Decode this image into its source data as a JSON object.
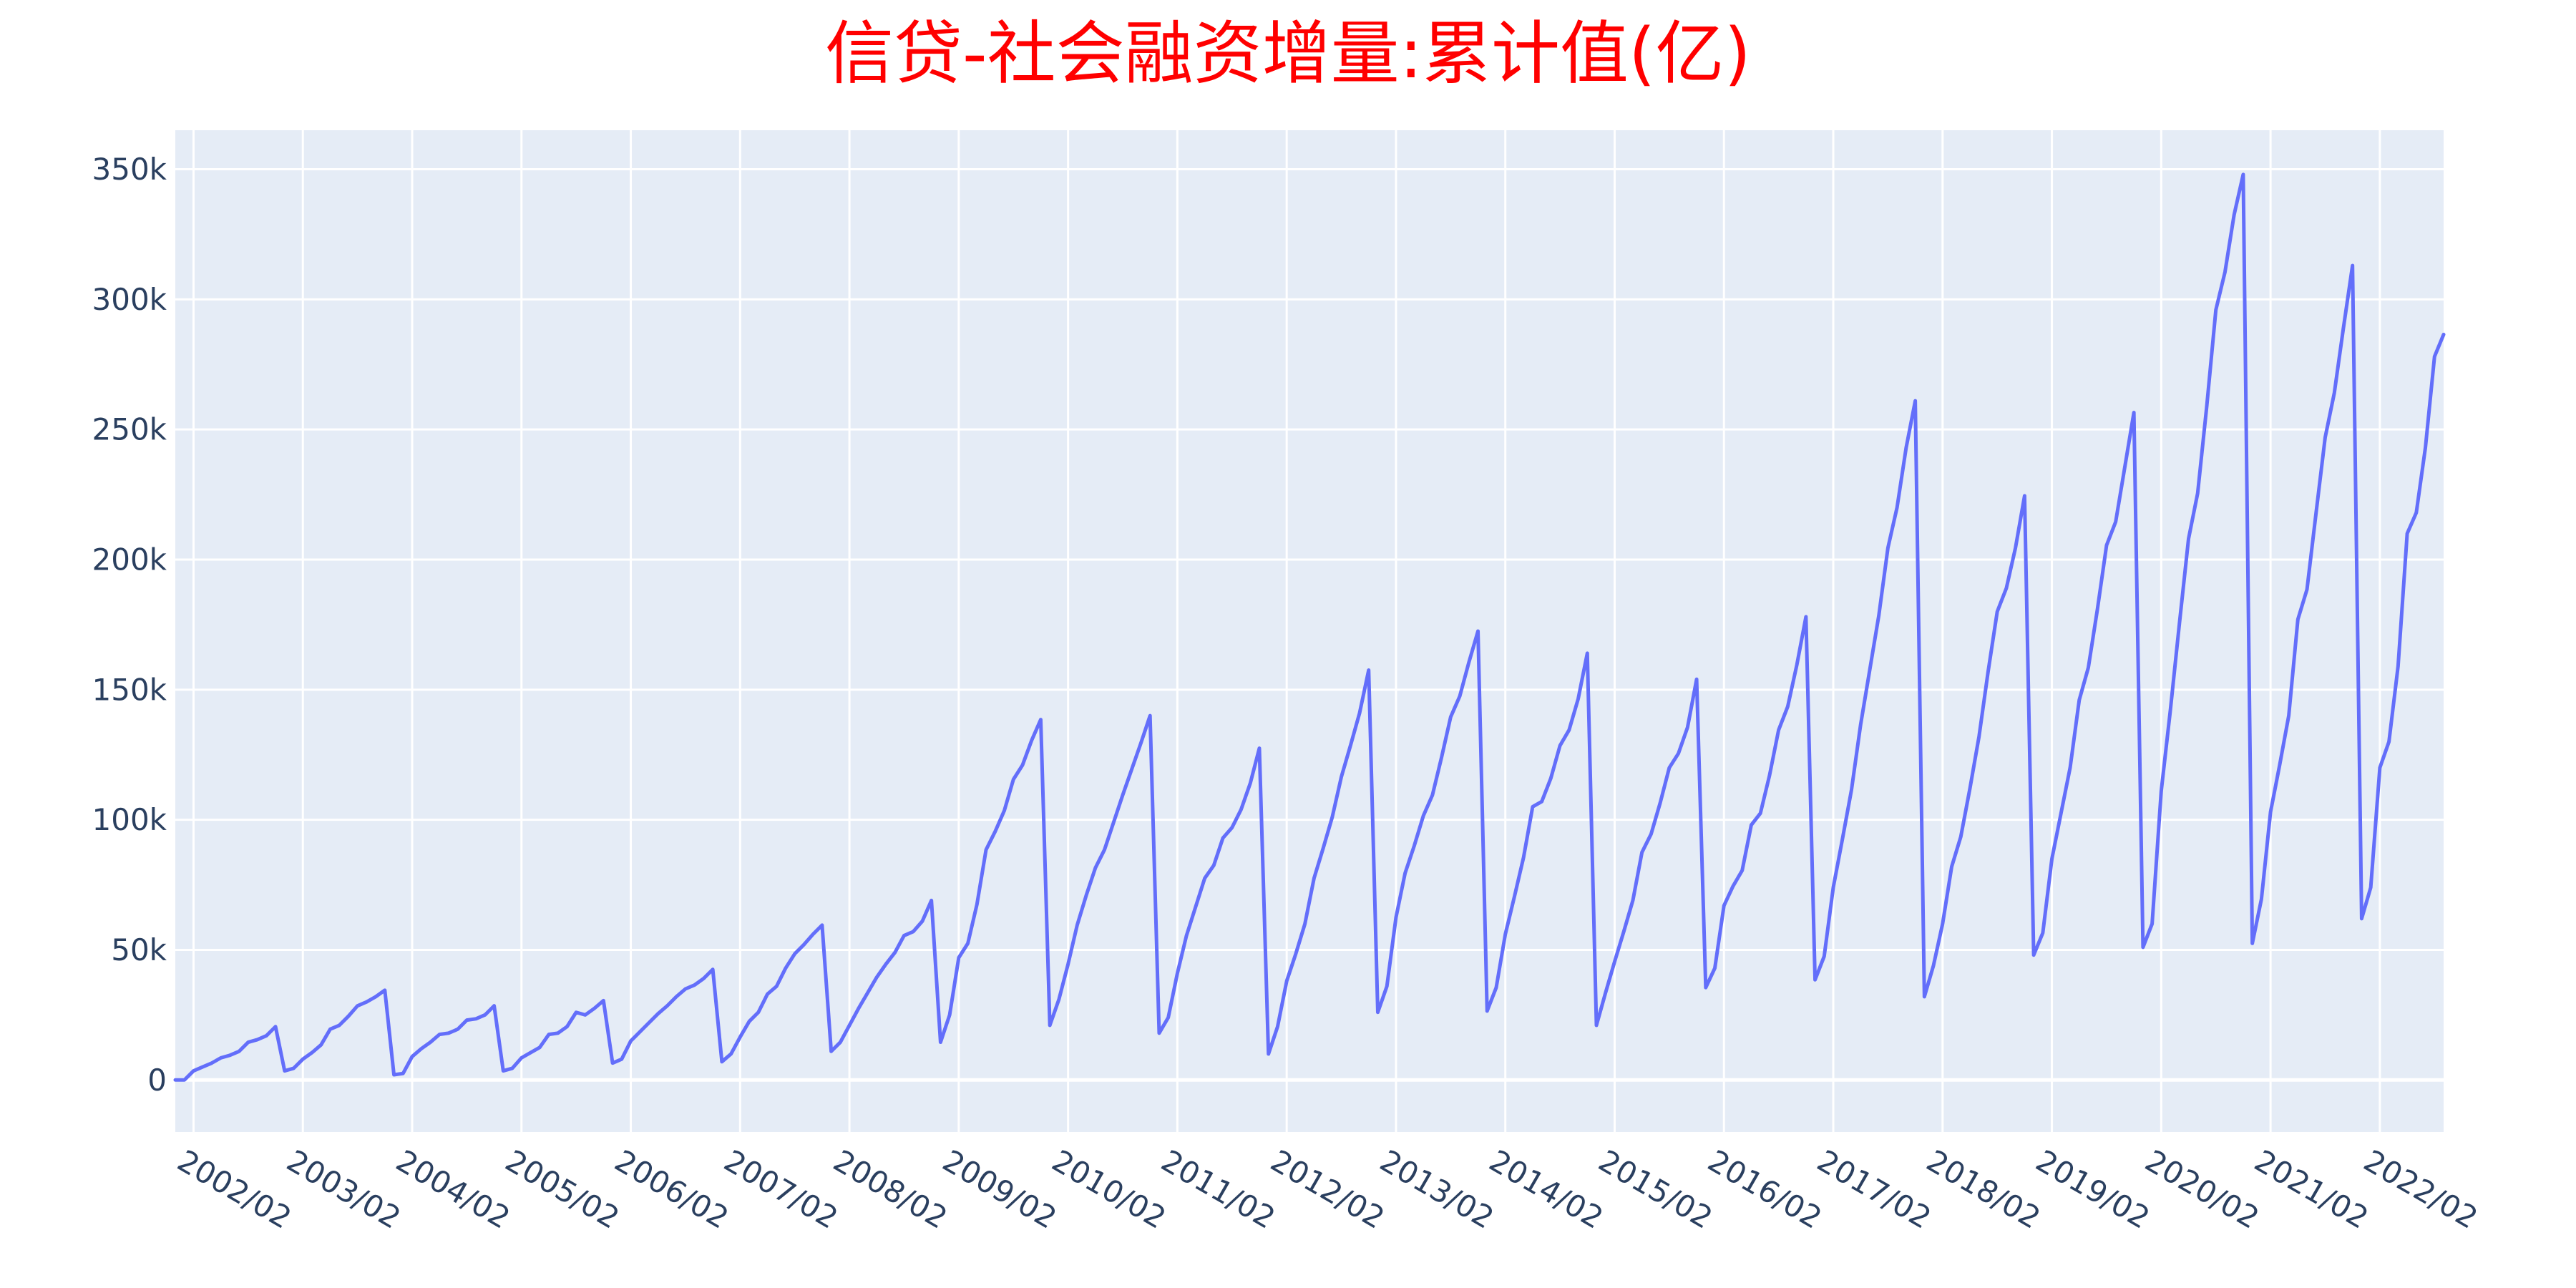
{
  "colors": {
    "title": "#ff0000",
    "plot_bg": "#e5ecf6",
    "grid": "#ffffff",
    "line": "#636efa",
    "tick_text": "#2a3f5f"
  },
  "chart_data": {
    "type": "line",
    "title": "信贷-社会融资增量:累计值(亿)",
    "xlabel": "",
    "ylabel": "",
    "x_start": "2001-12",
    "x_range": [
      "2001-12",
      "2022-06"
    ],
    "ylim": [
      -20000,
      365000
    ],
    "grid": true,
    "y_ticks": [
      0,
      50000,
      100000,
      150000,
      200000,
      250000,
      300000,
      350000
    ],
    "y_tick_labels": [
      "0",
      "50k",
      "100k",
      "150k",
      "200k",
      "250k",
      "300k",
      "350k"
    ],
    "x_tick_labels": [
      "2002/02",
      "2003/02",
      "2004/02",
      "2005/02",
      "2006/02",
      "2007/02",
      "2008/02",
      "2009/02",
      "2010/02",
      "2011/02",
      "2012/02",
      "2013/02",
      "2014/02",
      "2015/02",
      "2016/02",
      "2017/02",
      "2018/02",
      "2019/02",
      "2020/02",
      "2021/02",
      "2022/02"
    ],
    "series": [
      {
        "values": [
          0,
          0,
          3500,
          5000,
          6500,
          8500,
          9500,
          11000,
          14500,
          15500,
          17000,
          20500,
          3500,
          4500,
          8000,
          10500,
          13500,
          19500,
          21000,
          24500,
          28500,
          30000,
          32000,
          34500,
          2000,
          2500,
          9000,
          12000,
          14500,
          17500,
          18000,
          19500,
          23000,
          23500,
          25000,
          28500,
          3500,
          4500,
          8500,
          10500,
          12500,
          17500,
          18000,
          20500,
          26000,
          25000,
          27500,
          30500,
          6500,
          8000,
          15000,
          18500,
          22000,
          25500,
          28500,
          32000,
          35000,
          36500,
          39000,
          42500,
          7000,
          10000,
          16500,
          22500,
          26000,
          33000,
          36000,
          43000,
          48500,
          52000,
          56000,
          59500,
          11000,
          14500,
          21000,
          27500,
          33500,
          39500,
          44500,
          49000,
          55500,
          57000,
          61000,
          69000,
          14500,
          25000,
          47000,
          52500,
          67500,
          88500,
          95500,
          103500,
          115500,
          121000,
          130500,
          138500,
          21000,
          31000,
          44500,
          59500,
          71000,
          81500,
          88500,
          99000,
          109500,
          119500,
          129500,
          140000,
          18000,
          24000,
          41000,
          55500,
          66500,
          77500,
          82500,
          93000,
          97000,
          104000,
          114000,
          127500,
          10000,
          20500,
          38000,
          48500,
          60000,
          77500,
          89000,
          101000,
          116500,
          128500,
          141000,
          157500,
          26000,
          36000,
          62500,
          79500,
          90000,
          101500,
          109500,
          124000,
          139500,
          147500,
          160500,
          172500,
          26500,
          35500,
          56000,
          70500,
          85500,
          105000,
          107000,
          116000,
          128500,
          134500,
          146500,
          164000,
          21000,
          33500,
          45500,
          57000,
          69000,
          87500,
          94500,
          106500,
          120000,
          125500,
          135500,
          154000,
          35500,
          43000,
          67000,
          74500,
          80500,
          98000,
          102500,
          117000,
          134500,
          143500,
          159500,
          178000,
          38500,
          47500,
          74000,
          92500,
          111500,
          136500,
          157500,
          178500,
          204500,
          220000,
          243000,
          261000,
          32000,
          44000,
          60000,
          82000,
          93500,
          112000,
          132000,
          157000,
          180000,
          189000,
          204500,
          224500,
          48000,
          56500,
          85000,
          102500,
          120000,
          146000,
          158500,
          181000,
          205500,
          214500,
          235500,
          256500,
          51000,
          60000,
          111000,
          142000,
          175500,
          208000,
          225500,
          259000,
          296000,
          310500,
          332500,
          348000,
          52500,
          69500,
          103000,
          121000,
          140000,
          177000,
          188500,
          218000,
          247000,
          264000,
          289000,
          313000,
          62000,
          74000,
          120000,
          130000,
          159000,
          210000,
          218000,
          243000,
          278000,
          286500
        ]
      }
    ]
  }
}
